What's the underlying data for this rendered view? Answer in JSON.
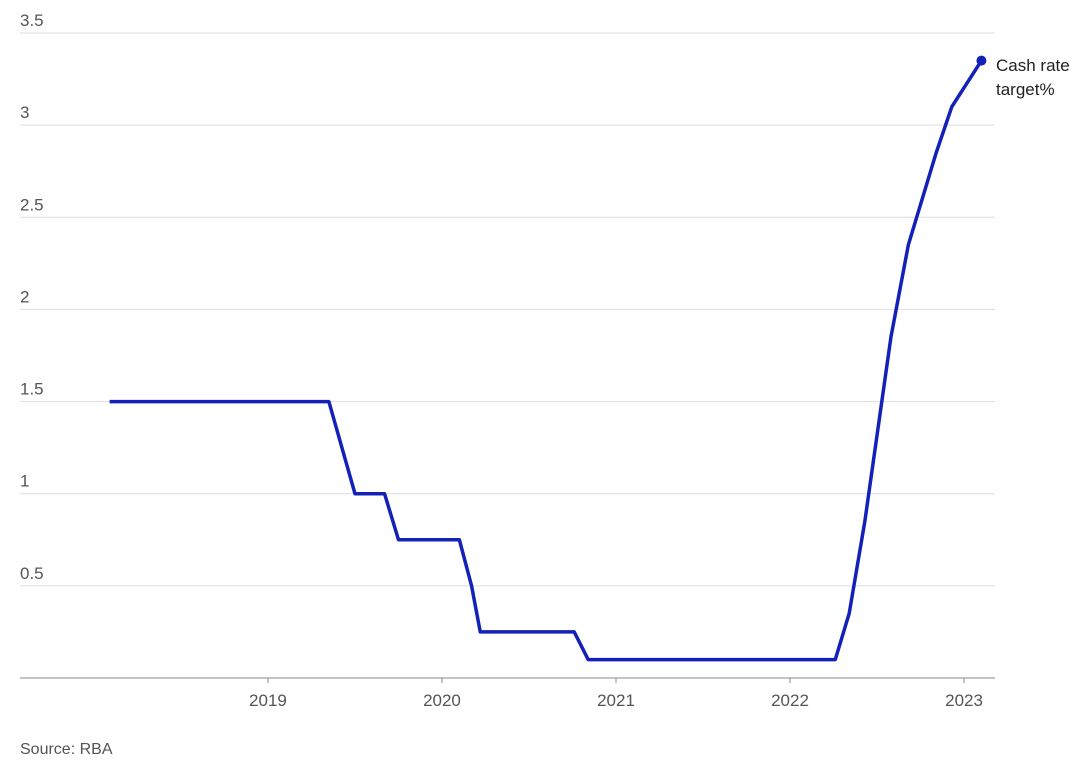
{
  "chart_data": {
    "type": "line",
    "source": "Source: RBA",
    "x": [
      2018.09,
      2019.35,
      2019.5,
      2019.67,
      2019.75,
      2020.1,
      2020.17,
      2020.22,
      2020.76,
      2020.84,
      2022.26,
      2022.34,
      2022.43,
      2022.58,
      2022.68,
      2022.84,
      2022.93,
      2023.1
    ],
    "series": [
      {
        "name": "Cash rate target%",
        "color": "#1321b8",
        "values": [
          1.5,
          1.5,
          1.0,
          1.0,
          0.75,
          0.75,
          0.5,
          0.25,
          0.25,
          0.1,
          0.1,
          0.35,
          0.85,
          1.85,
          2.35,
          2.85,
          3.1,
          3.35
        ]
      }
    ],
    "xlim": [
      2017.575,
      2023.178
    ],
    "xticks": [
      2019,
      2020,
      2021,
      2022,
      2023
    ],
    "ylim": [
      0,
      3.5
    ],
    "yticks": [
      0.5,
      1,
      1.5,
      2,
      2.5,
      3,
      3.5
    ],
    "grid": true
  }
}
